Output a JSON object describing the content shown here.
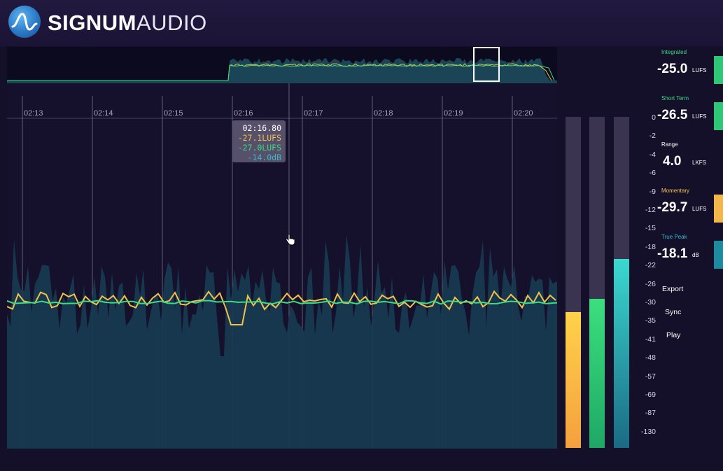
{
  "brand": {
    "name_bold": "SIGNUM",
    "name_light": "AUDIO"
  },
  "timeline": {
    "time_labels": [
      "02:13",
      "02:14",
      "02:15",
      "02:16",
      "02:17",
      "02:18",
      "02:19",
      "02:20"
    ],
    "tooltip": {
      "time": "02:16.80",
      "momentary": "-27.1LUFS",
      "short_term": "-27.0LUFS",
      "true_peak": "-14.0dB"
    }
  },
  "scale": {
    "ticks": [
      "0",
      "-2",
      "-4",
      "-6",
      "-9",
      "-12",
      "-15",
      "-18",
      "-22",
      "-26",
      "-30",
      "-35",
      "-41",
      "-48",
      "-57",
      "-69",
      "-87",
      "-130"
    ]
  },
  "meters": {
    "momentary_level": 0.41,
    "short_term_level": 0.45,
    "true_peak_level": 0.57
  },
  "readouts": {
    "integrated": {
      "label": "Integrated",
      "value": "-25.0",
      "unit": "LUFS",
      "color": "#3ddc84"
    },
    "short_term": {
      "label": "Short Term",
      "value": "-26.5",
      "unit": "LUFS",
      "color": "#3ddc84"
    },
    "range": {
      "label": "Range",
      "value": "4.0",
      "unit": "LKFS"
    },
    "momentary": {
      "label": "Momentary",
      "value": "-29.7",
      "unit": "LUFS",
      "color": "#f2c14a"
    },
    "true_peak": {
      "label": "True Peak",
      "value": "-18.1",
      "unit": "dB",
      "color": "#3ab9c8"
    }
  },
  "actions": {
    "export": "Export",
    "sync": "Sync",
    "play": "Play"
  },
  "colors": {
    "momentary": "#f2c14a",
    "short_term": "#3ddc84",
    "true_peak_area": "#1a4a60",
    "background": "#14102a"
  }
}
